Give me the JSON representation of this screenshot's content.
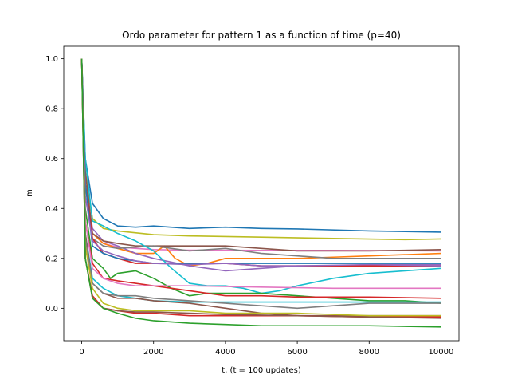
{
  "chart_data": {
    "type": "line",
    "title": "Ordo parameter for pattern 1 as a function of time (p=40)",
    "xlabel": "t,  (t = 100 updates)",
    "ylabel": "m",
    "xlim": [
      -500,
      10500
    ],
    "ylim": [
      -0.13,
      1.05
    ],
    "xticks": [
      0,
      2000,
      4000,
      6000,
      8000,
      10000
    ],
    "yticks": [
      0.0,
      0.2,
      0.4,
      0.6,
      0.8,
      1.0
    ],
    "ytick_labels": [
      "0.0",
      "0.2",
      "0.4",
      "0.6",
      "0.8",
      "1.0"
    ],
    "grid": false,
    "legend": "none",
    "series": [
      {
        "color": "#1f77b4",
        "points": [
          [
            0,
            1.0
          ],
          [
            100,
            0.6
          ],
          [
            300,
            0.42
          ],
          [
            600,
            0.36
          ],
          [
            1000,
            0.33
          ],
          [
            1500,
            0.325
          ],
          [
            2000,
            0.33
          ],
          [
            3000,
            0.32
          ],
          [
            4000,
            0.325
          ],
          [
            5000,
            0.32
          ],
          [
            6000,
            0.318
          ],
          [
            8000,
            0.31
          ],
          [
            10000,
            0.305
          ]
        ]
      },
      {
        "color": "#bcbd22",
        "points": [
          [
            0,
            1.0
          ],
          [
            100,
            0.55
          ],
          [
            300,
            0.36
          ],
          [
            600,
            0.32
          ],
          [
            1000,
            0.31
          ],
          [
            2000,
            0.295
          ],
          [
            3000,
            0.29
          ],
          [
            5000,
            0.285
          ],
          [
            7000,
            0.28
          ],
          [
            9000,
            0.275
          ],
          [
            10000,
            0.278
          ]
        ]
      },
      {
        "color": "#e377c2",
        "points": [
          [
            0,
            1.0
          ],
          [
            100,
            0.5
          ],
          [
            300,
            0.3
          ],
          [
            600,
            0.26
          ],
          [
            1000,
            0.245
          ],
          [
            2000,
            0.235
          ],
          [
            3000,
            0.233
          ],
          [
            5000,
            0.232
          ],
          [
            7000,
            0.232
          ],
          [
            10000,
            0.23
          ]
        ]
      },
      {
        "color": "#ff7f0e",
        "points": [
          [
            0,
            1.0
          ],
          [
            100,
            0.5
          ],
          [
            300,
            0.3
          ],
          [
            600,
            0.26
          ],
          [
            1000,
            0.24
          ],
          [
            1500,
            0.22
          ],
          [
            2000,
            0.22
          ],
          [
            2300,
            0.25
          ],
          [
            2600,
            0.2
          ],
          [
            3000,
            0.17
          ],
          [
            3500,
            0.18
          ],
          [
            4000,
            0.2
          ],
          [
            5000,
            0.2
          ],
          [
            6000,
            0.2
          ],
          [
            7000,
            0.205
          ],
          [
            8000,
            0.21
          ],
          [
            10000,
            0.22
          ]
        ]
      },
      {
        "color": "#9467bd",
        "points": [
          [
            0,
            1.0
          ],
          [
            100,
            0.5
          ],
          [
            300,
            0.32
          ],
          [
            600,
            0.27
          ],
          [
            1000,
            0.25
          ],
          [
            1500,
            0.22
          ],
          [
            2000,
            0.2
          ],
          [
            3000,
            0.17
          ],
          [
            3500,
            0.16
          ],
          [
            4000,
            0.15
          ],
          [
            5000,
            0.16
          ],
          [
            6000,
            0.17
          ],
          [
            7000,
            0.17
          ],
          [
            8000,
            0.175
          ],
          [
            10000,
            0.175
          ]
        ]
      },
      {
        "color": "#8c564b",
        "points": [
          [
            0,
            1.0
          ],
          [
            100,
            0.55
          ],
          [
            300,
            0.3
          ],
          [
            600,
            0.27
          ],
          [
            1000,
            0.26
          ],
          [
            1500,
            0.25
          ],
          [
            2000,
            0.25
          ],
          [
            3000,
            0.25
          ],
          [
            4000,
            0.25
          ],
          [
            5000,
            0.24
          ],
          [
            6000,
            0.23
          ],
          [
            7000,
            0.23
          ],
          [
            8000,
            0.23
          ],
          [
            10000,
            0.235
          ]
        ]
      },
      {
        "color": "#7f7f7f",
        "points": [
          [
            0,
            1.0
          ],
          [
            100,
            0.5
          ],
          [
            300,
            0.28
          ],
          [
            600,
            0.25
          ],
          [
            1000,
            0.24
          ],
          [
            1500,
            0.245
          ],
          [
            2000,
            0.25
          ],
          [
            3000,
            0.23
          ],
          [
            4000,
            0.24
          ],
          [
            4500,
            0.23
          ],
          [
            5000,
            0.22
          ],
          [
            6000,
            0.21
          ],
          [
            7000,
            0.2
          ],
          [
            8000,
            0.2
          ],
          [
            10000,
            0.2
          ]
        ]
      },
      {
        "color": "#17becf",
        "points": [
          [
            0,
            1.0
          ],
          [
            100,
            0.6
          ],
          [
            300,
            0.35
          ],
          [
            600,
            0.33
          ],
          [
            1000,
            0.3
          ],
          [
            1500,
            0.27
          ],
          [
            2000,
            0.23
          ],
          [
            2500,
            0.16
          ],
          [
            3000,
            0.1
          ],
          [
            3500,
            0.09
          ],
          [
            4000,
            0.09
          ],
          [
            4500,
            0.08
          ],
          [
            5000,
            0.06
          ],
          [
            5500,
            0.07
          ],
          [
            6000,
            0.09
          ],
          [
            7000,
            0.12
          ],
          [
            8000,
            0.14
          ],
          [
            9000,
            0.15
          ],
          [
            10000,
            0.16
          ]
        ]
      },
      {
        "color": "#d62728",
        "points": [
          [
            0,
            1.0
          ],
          [
            100,
            0.5
          ],
          [
            300,
            0.28
          ],
          [
            600,
            0.22
          ],
          [
            1000,
            0.2
          ],
          [
            1500,
            0.18
          ],
          [
            2000,
            0.18
          ],
          [
            3000,
            0.18
          ],
          [
            4000,
            0.18
          ],
          [
            5000,
            0.17
          ],
          [
            6000,
            0.17
          ],
          [
            8000,
            0.17
          ],
          [
            10000,
            0.17
          ]
        ]
      },
      {
        "color": "#1f77b4",
        "points": [
          [
            0,
            1.0
          ],
          [
            100,
            0.5
          ],
          [
            300,
            0.25
          ],
          [
            600,
            0.22
          ],
          [
            1000,
            0.2
          ],
          [
            1500,
            0.19
          ],
          [
            2000,
            0.18
          ],
          [
            3000,
            0.18
          ],
          [
            4000,
            0.18
          ],
          [
            6000,
            0.18
          ],
          [
            8000,
            0.18
          ],
          [
            10000,
            0.18
          ]
        ]
      },
      {
        "color": "#9467bd",
        "points": [
          [
            0,
            1.0
          ],
          [
            100,
            0.45
          ],
          [
            300,
            0.27
          ],
          [
            600,
            0.23
          ],
          [
            1000,
            0.21
          ],
          [
            1500,
            0.19
          ],
          [
            2000,
            0.18
          ],
          [
            3000,
            0.175
          ],
          [
            4000,
            0.18
          ],
          [
            5000,
            0.17
          ],
          [
            6000,
            0.17
          ],
          [
            8000,
            0.175
          ],
          [
            10000,
            0.17
          ]
        ]
      },
      {
        "color": "#2ca02c",
        "points": [
          [
            0,
            1.0
          ],
          [
            100,
            0.4
          ],
          [
            300,
            0.2
          ],
          [
            600,
            0.16
          ],
          [
            800,
            0.12
          ],
          [
            1000,
            0.14
          ],
          [
            1500,
            0.15
          ],
          [
            2000,
            0.12
          ],
          [
            2500,
            0.08
          ],
          [
            3000,
            0.05
          ],
          [
            3500,
            0.06
          ],
          [
            4000,
            0.06
          ],
          [
            5000,
            0.06
          ],
          [
            6000,
            0.05
          ],
          [
            7000,
            0.04
          ],
          [
            8000,
            0.03
          ],
          [
            9000,
            0.03
          ],
          [
            10000,
            0.02
          ]
        ]
      },
      {
        "color": "#d62728",
        "points": [
          [
            0,
            1.0
          ],
          [
            100,
            0.35
          ],
          [
            300,
            0.18
          ],
          [
            600,
            0.12
          ],
          [
            1000,
            0.11
          ],
          [
            1500,
            0.1
          ],
          [
            2000,
            0.09
          ],
          [
            3000,
            0.07
          ],
          [
            4000,
            0.05
          ],
          [
            5000,
            0.05
          ],
          [
            6000,
            0.045
          ],
          [
            8000,
            0.045
          ],
          [
            10000,
            0.04
          ]
        ]
      },
      {
        "color": "#e377c2",
        "points": [
          [
            0,
            1.0
          ],
          [
            100,
            0.35
          ],
          [
            300,
            0.16
          ],
          [
            600,
            0.12
          ],
          [
            1000,
            0.1
          ],
          [
            1500,
            0.09
          ],
          [
            2000,
            0.09
          ],
          [
            3000,
            0.09
          ],
          [
            5000,
            0.085
          ],
          [
            7000,
            0.08
          ],
          [
            10000,
            0.08
          ]
        ]
      },
      {
        "color": "#17becf",
        "points": [
          [
            0,
            1.0
          ],
          [
            100,
            0.3
          ],
          [
            300,
            0.12
          ],
          [
            600,
            0.08
          ],
          [
            1000,
            0.05
          ],
          [
            1500,
            0.04
          ],
          [
            2000,
            0.03
          ],
          [
            3000,
            0.025
          ],
          [
            5000,
            0.025
          ],
          [
            7000,
            0.025
          ],
          [
            10000,
            0.025
          ]
        ]
      },
      {
        "color": "#8c564b",
        "points": [
          [
            0,
            1.0
          ],
          [
            100,
            0.3
          ],
          [
            300,
            0.1
          ],
          [
            600,
            0.06
          ],
          [
            1000,
            0.04
          ],
          [
            1500,
            0.04
          ],
          [
            2000,
            0.03
          ],
          [
            3000,
            0.02
          ],
          [
            4000,
            0.0
          ],
          [
            5000,
            -0.02
          ],
          [
            6000,
            -0.03
          ],
          [
            8000,
            -0.03
          ],
          [
            10000,
            -0.03
          ]
        ]
      },
      {
        "color": "#7f7f7f",
        "points": [
          [
            0,
            1.0
          ],
          [
            100,
            0.28
          ],
          [
            300,
            0.1
          ],
          [
            600,
            0.06
          ],
          [
            1000,
            0.05
          ],
          [
            1500,
            0.05
          ],
          [
            2000,
            0.04
          ],
          [
            3000,
            0.03
          ],
          [
            4000,
            0.02
          ],
          [
            5000,
            0.01
          ],
          [
            6000,
            0.0
          ],
          [
            7000,
            0.01
          ],
          [
            8000,
            0.02
          ],
          [
            10000,
            0.02
          ]
        ]
      },
      {
        "color": "#bcbd22",
        "points": [
          [
            0,
            1.0
          ],
          [
            100,
            0.25
          ],
          [
            300,
            0.08
          ],
          [
            600,
            0.02
          ],
          [
            1000,
            0.0
          ],
          [
            1500,
            -0.01
          ],
          [
            2000,
            -0.01
          ],
          [
            3000,
            -0.01
          ],
          [
            4000,
            -0.02
          ],
          [
            6000,
            -0.02
          ],
          [
            8000,
            -0.03
          ],
          [
            10000,
            -0.03
          ]
        ]
      },
      {
        "color": "#d62728",
        "points": [
          [
            0,
            1.0
          ],
          [
            100,
            0.2
          ],
          [
            300,
            0.05
          ],
          [
            600,
            0.0
          ],
          [
            1000,
            -0.01
          ],
          [
            1500,
            -0.02
          ],
          [
            2000,
            -0.02
          ],
          [
            3000,
            -0.03
          ],
          [
            4000,
            -0.03
          ],
          [
            6000,
            -0.03
          ],
          [
            8000,
            -0.035
          ],
          [
            10000,
            -0.035
          ]
        ]
      },
      {
        "color": "#8c564b",
        "points": [
          [
            0,
            1.0
          ],
          [
            100,
            0.2
          ],
          [
            300,
            0.04
          ],
          [
            600,
            0.0
          ],
          [
            1000,
            -0.01
          ],
          [
            1500,
            -0.015
          ],
          [
            2000,
            -0.015
          ],
          [
            3000,
            -0.02
          ],
          [
            4000,
            -0.025
          ],
          [
            6000,
            -0.03
          ],
          [
            8000,
            -0.035
          ],
          [
            10000,
            -0.04
          ]
        ]
      },
      {
        "color": "#2ca02c",
        "points": [
          [
            0,
            1.0
          ],
          [
            100,
            0.2
          ],
          [
            300,
            0.04
          ],
          [
            600,
            0.0
          ],
          [
            1000,
            -0.02
          ],
          [
            1500,
            -0.04
          ],
          [
            2000,
            -0.05
          ],
          [
            3000,
            -0.06
          ],
          [
            4000,
            -0.065
          ],
          [
            5000,
            -0.07
          ],
          [
            6000,
            -0.07
          ],
          [
            8000,
            -0.07
          ],
          [
            10000,
            -0.075
          ]
        ]
      }
    ]
  }
}
